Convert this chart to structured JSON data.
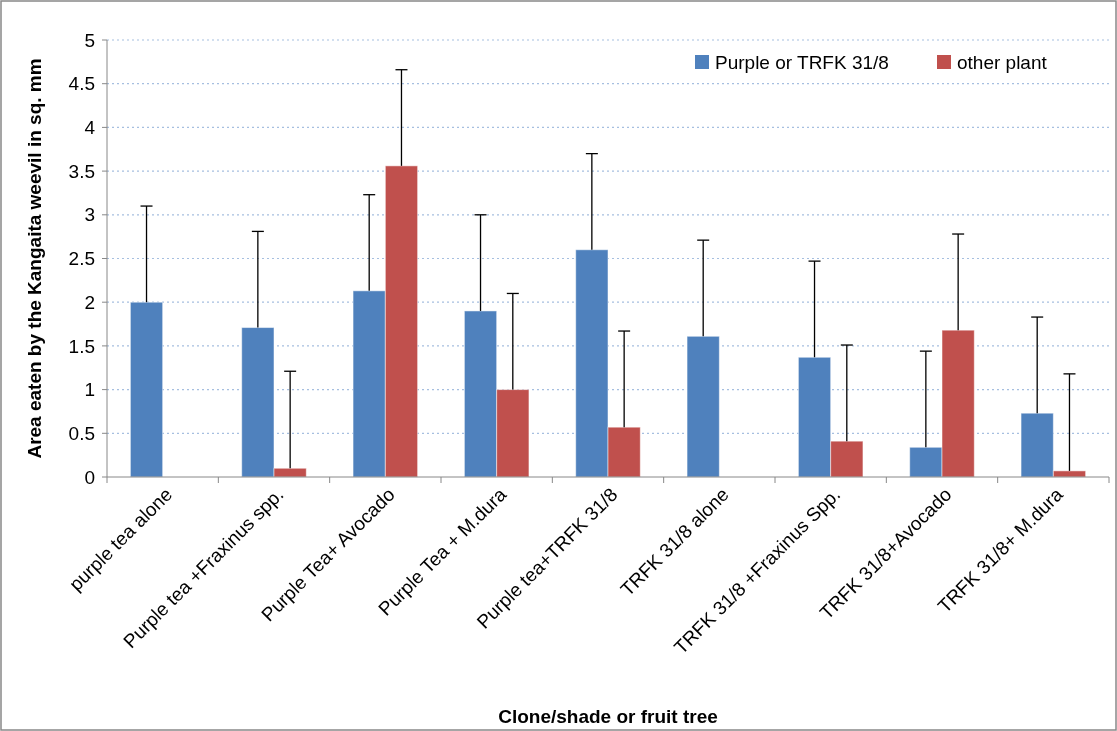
{
  "chart_data": {
    "type": "bar",
    "xlabel": "Clone/shade or fruit tree",
    "ylabel": "Area eaten by the Kangaita  weevil in sq. mm",
    "categories": [
      "purple tea alone",
      "Purple tea +Fraxinus spp.",
      "Purple Tea+ Avocado",
      "Purple Tea + M.dura",
      "Purple tea+TRFK 31/8",
      "TRFK 31/8 alone",
      "TRFK 31/8 +Fraxinus Spp.",
      "TRFK 31/8+Avocado",
      "TRFK 31/8+ M.dura"
    ],
    "series": [
      {
        "name": "Purple or TRFK 31/8",
        "color": "#4f81bd",
        "values": [
          2.0,
          1.71,
          2.13,
          1.9,
          2.6,
          1.61,
          1.37,
          0.34,
          0.73
        ],
        "errors": [
          [
            2.0,
            3.1
          ],
          [
            1.71,
            2.81
          ],
          [
            2.13,
            3.23
          ],
          [
            1.9,
            3.0
          ],
          [
            2.6,
            3.7
          ],
          [
            1.61,
            2.71
          ],
          [
            1.37,
            2.47
          ],
          [
            0.34,
            1.44
          ],
          [
            0.73,
            1.83
          ]
        ]
      },
      {
        "name": "other plant",
        "color": "#c0504d",
        "values": [
          null,
          0.1,
          3.56,
          1.0,
          0.57,
          null,
          0.41,
          1.68,
          0.07
        ],
        "errors": [
          null,
          [
            0.1,
            1.21
          ],
          [
            3.56,
            4.66
          ],
          [
            1.0,
            2.1
          ],
          [
            0.57,
            1.67
          ],
          null,
          [
            0.41,
            1.51
          ],
          [
            1.68,
            2.78
          ],
          [
            0.07,
            1.18
          ]
        ]
      }
    ],
    "ylim": [
      0,
      5
    ],
    "yticks": [
      0,
      0.5,
      1,
      1.5,
      2,
      2.5,
      3,
      3.5,
      4,
      4.5,
      5
    ],
    "grid": "y",
    "legend": "top right"
  }
}
